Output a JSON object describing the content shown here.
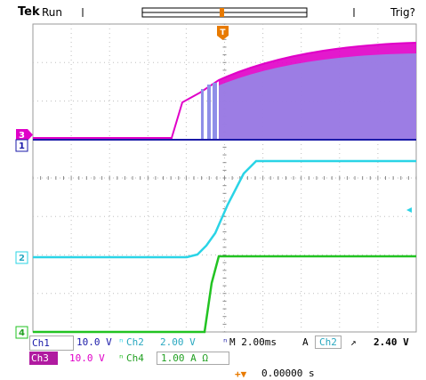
{
  "header": {
    "brand": "Tek",
    "run_state": "Run",
    "trigger_status": "Trig?"
  },
  "markers": {
    "trigger_position": "T",
    "ch3": "3",
    "ch1": "1",
    "ch2": "2",
    "ch4": "4"
  },
  "readouts": {
    "ch1_label": "Ch1",
    "ch1_scale": "10.0 V",
    "ch2_label": "Ch2",
    "ch2_scale": "2.00 V",
    "ch3_label": "Ch3",
    "ch3_scale": "10.0 V",
    "ch4_label": "Ch4",
    "ch4_scale": "1.00 A Ω",
    "timebase": "M 2.00ms",
    "trigger_source_label": "A",
    "trigger_source": "Ch2",
    "trigger_slope": "↗",
    "trigger_level": "2.40 V",
    "position_label": "+▼",
    "position_value": "0.00000 s"
  },
  "colors": {
    "ch1": "#1a1aa8",
    "ch2": "#2ad4e6",
    "ch3": "#e000c8",
    "ch4": "#22c322",
    "trigger": "#e87a00",
    "grid": "#bfbfbf"
  }
}
